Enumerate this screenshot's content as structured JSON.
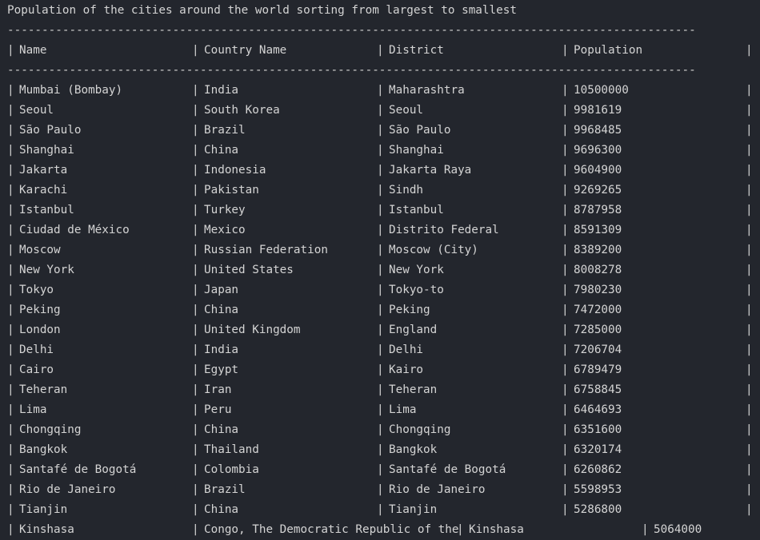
{
  "title": "Population of the cities around the world sorting from largest to smallest",
  "divider": "----------------------------------------------------------------------------------------------------",
  "pipe": "|",
  "headers": [
    "Name",
    "Country Name",
    "District",
    "Population"
  ],
  "rows": [
    [
      "Mumbai (Bombay)",
      "India",
      "Maharashtra",
      "10500000"
    ],
    [
      "Seoul",
      "South Korea",
      "Seoul",
      "9981619"
    ],
    [
      "São Paulo",
      "Brazil",
      "São Paulo",
      "9968485"
    ],
    [
      "Shanghai",
      "China",
      "Shanghai",
      "9696300"
    ],
    [
      "Jakarta",
      "Indonesia",
      "Jakarta Raya",
      "9604900"
    ],
    [
      "Karachi",
      "Pakistan",
      "Sindh",
      "9269265"
    ],
    [
      "Istanbul",
      "Turkey",
      "Istanbul",
      "8787958"
    ],
    [
      "Ciudad de México",
      "Mexico",
      "Distrito Federal",
      "8591309"
    ],
    [
      "Moscow",
      "Russian Federation",
      "Moscow (City)",
      "8389200"
    ],
    [
      "New York",
      "United States",
      "New York",
      "8008278"
    ],
    [
      "Tokyo",
      "Japan",
      "Tokyo-to",
      "7980230"
    ],
    [
      "Peking",
      "China",
      "Peking",
      "7472000"
    ],
    [
      "London",
      "United Kingdom",
      "England",
      "7285000"
    ],
    [
      "Delhi",
      "India",
      "Delhi",
      "7206704"
    ],
    [
      "Cairo",
      "Egypt",
      "Kairo",
      "6789479"
    ],
    [
      "Teheran",
      "Iran",
      "Teheran",
      "6758845"
    ],
    [
      "Lima",
      "Peru",
      "Lima",
      "6464693"
    ],
    [
      "Chongqing",
      "China",
      "Chongqing",
      "6351600"
    ],
    [
      "Bangkok",
      "Thailand",
      "Bangkok",
      "6320174"
    ],
    [
      "Santafé de Bogotá",
      "Colombia",
      "Santafé de Bogotá",
      "6260862"
    ],
    [
      "Rio de Janeiro",
      "Brazil",
      "Rio de Janeiro",
      "5598953"
    ],
    [
      "Tianjin",
      "China",
      "Tianjin",
      "5286800"
    ]
  ],
  "partial_row": [
    "Kinshasa",
    "Congo, The Democratic Republic of the",
    "Kinshasa",
    "5064000"
  ],
  "colors": {
    "background": "#23262d",
    "text": "#d4d4d4"
  }
}
